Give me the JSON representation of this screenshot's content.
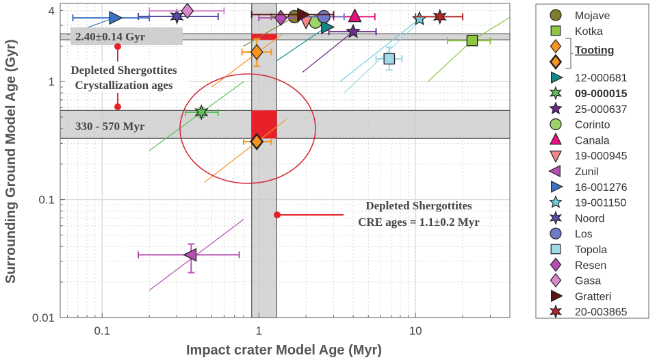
{
  "chart_data": {
    "type": "scatter",
    "xlabel": "Impact crater Model Age (Myr)",
    "ylabel": "Surrounding Ground Model Age (Gyr)",
    "xscale": "log",
    "yscale": "log",
    "xlim": [
      0.054,
      40
    ],
    "ylim": [
      0.01,
      4.6
    ],
    "xticks": [
      {
        "v": 0.1,
        "label": "0.1"
      },
      {
        "v": 1,
        "label": "1"
      },
      {
        "v": 10,
        "label": "10"
      }
    ],
    "yticks": [
      {
        "v": 0.01,
        "label": "0.01"
      },
      {
        "v": 0.1,
        "label": "0.1"
      },
      {
        "v": 1,
        "label": "1"
      },
      {
        "v": 4,
        "label": "4"
      }
    ],
    "grid": true,
    "legend_placement": "right-outside",
    "bands": [
      {
        "orientation": "horizontal",
        "range": [
          2.26,
          2.54
        ],
        "label": "2.40±0.14 Gyr"
      },
      {
        "orientation": "horizontal",
        "range": [
          0.33,
          0.57
        ],
        "label": "330 - 570 Myr"
      },
      {
        "orientation": "vertical",
        "range": [
          0.9,
          1.3
        ]
      }
    ],
    "annotations": [
      {
        "text_lines": [
          "Depleted Shergottites",
          "Crystallization ages"
        ]
      },
      {
        "text_lines": [
          "Depleted Shergottites",
          "CRE ages = 1.1±0.2 Myr"
        ]
      }
    ],
    "highlight_color": "#e8202a",
    "series": [
      {
        "name": "Mojave",
        "marker": "circle",
        "color": "#7d7f2e",
        "x": 1.69,
        "y": 3.55,
        "xerr": [
          1.2,
          2.4
        ],
        "line": [
          [
            0.8,
            2.0
          ],
          [
            1.69,
            3.55
          ]
        ]
      },
      {
        "name": "Kotka",
        "marker": "square",
        "color": "#8dc63f",
        "x": 23,
        "y": 2.23,
        "xerr": [
          16,
          30
        ],
        "line": [
          [
            12,
            1.0
          ],
          [
            23,
            2.23
          ],
          [
            40,
            3.5
          ]
        ]
      },
      {
        "name": "Tooting",
        "marker": "diamond",
        "color": "#f7941d",
        "bold_label": true,
        "underline": true,
        "x": 0.97,
        "y": 1.78,
        "xerr": [
          0.78,
          1.2
        ],
        "yerr": [
          1.35,
          2.3
        ],
        "line": [
          [
            0.5,
            0.9
          ],
          [
            1.4,
            2.5
          ]
        ]
      },
      {
        "name": "",
        "marker": "diamond",
        "color": "#f7941d",
        "thick": true,
        "x": 0.97,
        "y": 0.31,
        "xerr": [
          0.8,
          1.2
        ],
        "line": [
          [
            0.45,
            0.14
          ],
          [
            1.5,
            0.48
          ]
        ]
      },
      {
        "name": "12-000681",
        "marker": "triangle-right",
        "color": "#138a8a",
        "x": 2.7,
        "y": 2.9,
        "line": [
          [
            1.3,
            1.5
          ],
          [
            2.7,
            2.9
          ]
        ]
      },
      {
        "name": "09-000015",
        "marker": "star6",
        "color": "#5cc15a",
        "bold_label": true,
        "x": 0.43,
        "y": 0.55,
        "xerr": [
          0.34,
          0.55
        ],
        "yerr": [
          0.5,
          0.6
        ],
        "line": [
          [
            0.2,
            0.26
          ],
          [
            0.8,
            1.0
          ]
        ]
      },
      {
        "name": "25-000637",
        "marker": "star5",
        "color": "#6a2b86",
        "x": 4.0,
        "y": 2.65,
        "xerr": [
          2.8,
          5.6
        ],
        "line": [
          [
            1.9,
            1.2
          ],
          [
            4.0,
            2.65
          ]
        ]
      },
      {
        "name": "Corinto",
        "marker": "circle",
        "color": "#9ed36a",
        "x": 2.3,
        "y": 3.2
      },
      {
        "name": "Canala",
        "marker": "triangle-up",
        "color": "#e6117f",
        "x": 4.1,
        "y": 3.55,
        "xerr": [
          3,
          5.5
        ]
      },
      {
        "name": "19-000945",
        "marker": "triangle-down",
        "color": "#f48788",
        "x": 2.0,
        "y": 3.25
      },
      {
        "name": "Zunil",
        "marker": "triangle-left",
        "color": "#b54fb3",
        "x": 0.37,
        "y": 0.034,
        "xerr": [
          0.17,
          0.75
        ],
        "yerr": [
          0.024,
          0.042
        ],
        "line": [
          [
            0.2,
            0.017
          ],
          [
            0.8,
            0.068
          ]
        ]
      },
      {
        "name": "16-001276",
        "marker": "triangle-right",
        "color": "#3a75c4",
        "x": 0.12,
        "y": 3.47,
        "xerr": [
          0.065,
          0.2
        ],
        "line": [
          [
            0.06,
            2.5
          ],
          [
            0.12,
            3.47
          ]
        ]
      },
      {
        "name": "19-001150",
        "marker": "star5",
        "color": "#6fd0e0",
        "x": 10.6,
        "y": 3.4,
        "line": [
          [
            3.3,
            1.0
          ],
          [
            10.6,
            3.4
          ]
        ]
      },
      {
        "name": "Noord",
        "marker": "star6",
        "color": "#5b4aa8",
        "x": 0.3,
        "y": 3.57,
        "xerr": [
          0.17,
          0.55
        ]
      },
      {
        "name": "Los",
        "marker": "circle",
        "color": "#7079c6",
        "x": 2.6,
        "y": 3.55,
        "xerr": [
          1.8,
          3.5
        ]
      },
      {
        "name": "Topola",
        "marker": "square",
        "color": "#9fd8e6",
        "x": 6.8,
        "y": 1.56,
        "xerr": [
          5.6,
          8.2
        ],
        "yerr": [
          1.25,
          1.95
        ],
        "line": [
          [
            3.5,
            0.8
          ],
          [
            10,
            3.0
          ]
        ]
      },
      {
        "name": "Resen",
        "marker": "diamond",
        "color": "#b54fb3",
        "x": 1.38,
        "y": 3.47,
        "xerr": [
          1.0,
          1.9
        ]
      },
      {
        "name": "Gasa",
        "marker": "diamond",
        "color": "#d88ac9",
        "x": 0.35,
        "y": 3.98,
        "xerr": [
          0.2,
          0.6
        ]
      },
      {
        "name": "Gratteri",
        "marker": "triangle-right",
        "color": "#5a1416",
        "x": 1.9,
        "y": 3.7,
        "xerr": [
          0.9,
          3
        ]
      },
      {
        "name": "20-003865",
        "marker": "star6",
        "color": "#b3262a",
        "x": 14.3,
        "y": 3.55,
        "xerr": [
          10,
          20
        ]
      }
    ]
  }
}
